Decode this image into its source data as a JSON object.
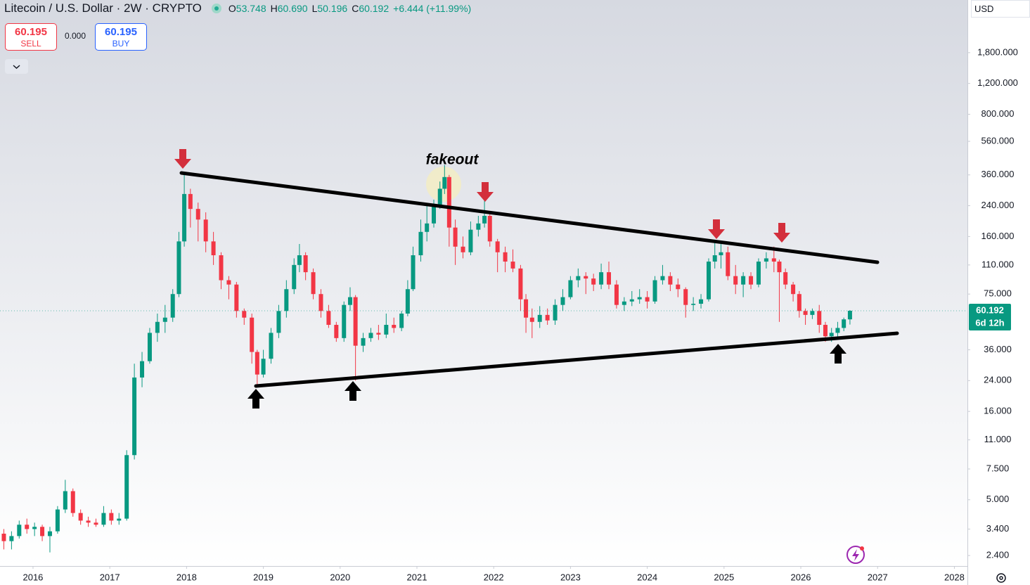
{
  "header": {
    "symbol": "Litecoin / U.S. Dollar · 2W · CRYPTO",
    "ohlc": [
      {
        "key": "O",
        "value": "53.748"
      },
      {
        "key": "H",
        "value": "60.690"
      },
      {
        "key": "L",
        "value": "50.196"
      },
      {
        "key": "C",
        "value": "60.192"
      }
    ],
    "change": "+6.444 (+11.99%)"
  },
  "trade": {
    "sell_price": "60.195",
    "sell": "SELL",
    "spread": "0.000",
    "buy_price": "60.195",
    "buy": "BUY"
  },
  "currency": "USD",
  "chart_data": {
    "type": "candlestick",
    "x": [
      2015.62,
      2015.72,
      2015.82,
      2015.92,
      2016.02,
      2016.12,
      2016.22,
      2016.32,
      2016.42,
      2016.52,
      2016.62,
      2016.72,
      2016.82,
      2016.92,
      2017.02,
      2017.12,
      2017.22,
      2017.32,
      2017.42,
      2017.52,
      2017.62,
      2017.72,
      2017.82,
      2017.9,
      2017.97,
      2018.05,
      2018.15,
      2018.25,
      2018.35,
      2018.45,
      2018.55,
      2018.65,
      2018.75,
      2018.85,
      2018.92,
      2019.0,
      2019.1,
      2019.2,
      2019.3,
      2019.4,
      2019.47,
      2019.55,
      2019.65,
      2019.75,
      2019.85,
      2019.95,
      2020.05,
      2020.13,
      2020.2,
      2020.3,
      2020.4,
      2020.5,
      2020.6,
      2020.7,
      2020.8,
      2020.88,
      2020.95,
      2021.05,
      2021.13,
      2021.22,
      2021.3,
      2021.36,
      2021.42,
      2021.5,
      2021.6,
      2021.7,
      2021.8,
      2021.88,
      2021.95,
      2022.05,
      2022.15,
      2022.25,
      2022.35,
      2022.42,
      2022.5,
      2022.6,
      2022.7,
      2022.8,
      2022.9,
      2023.0,
      2023.1,
      2023.2,
      2023.3,
      2023.4,
      2023.5,
      2023.6,
      2023.7,
      2023.8,
      2023.9,
      2024.0,
      2024.1,
      2024.2,
      2024.3,
      2024.4,
      2024.5,
      2024.6,
      2024.7,
      2024.8,
      2024.88,
      2024.96,
      2025.05,
      2025.15,
      2025.25,
      2025.35,
      2025.45,
      2025.55,
      2025.65,
      2025.72,
      2025.8,
      2025.9,
      2025.98,
      2026.06,
      2026.15,
      2026.24,
      2026.32,
      2026.4,
      2026.48,
      2026.56,
      2026.64
    ],
    "open": [
      3.2,
      2.9,
      3.1,
      3.6,
      3.4,
      3.5,
      3.1,
      3.3,
      4.4,
      5.6,
      4.2,
      3.8,
      3.7,
      3.6,
      4.2,
      3.8,
      3.9,
      9,
      25,
      31,
      45,
      52,
      55,
      75,
      150,
      280,
      230,
      200,
      150,
      125,
      90,
      85,
      60,
      55,
      35,
      26,
      32,
      45,
      60,
      80,
      110,
      125,
      100,
      75,
      60,
      50,
      42,
      65,
      72,
      38,
      42,
      45,
      44,
      50,
      48,
      58,
      80,
      125,
      170,
      190,
      240,
      300,
      350,
      180,
      140,
      130,
      175,
      190,
      210,
      150,
      130,
      115,
      105,
      70,
      55,
      52,
      57,
      53,
      65,
      72,
      90,
      95,
      92,
      85,
      100,
      85,
      65,
      68,
      70,
      72,
      68,
      90,
      95,
      85,
      80,
      65,
      66,
      70,
      115,
      125,
      130,
      95,
      85,
      95,
      85,
      115,
      120,
      115,
      100,
      85,
      75,
      60,
      57,
      60,
      50,
      43,
      45,
      48,
      53.748
    ],
    "high": [
      3.4,
      3.3,
      3.8,
      3.9,
      3.7,
      3.6,
      3.5,
      4.6,
      6.5,
      5.8,
      4.4,
      4.0,
      3.9,
      4.6,
      4.4,
      4.2,
      9.6,
      30,
      35,
      48,
      58,
      65,
      80,
      170,
      370,
      300,
      250,
      220,
      170,
      130,
      95,
      88,
      62,
      58,
      36,
      36,
      48,
      65,
      90,
      120,
      145,
      130,
      105,
      80,
      65,
      52,
      68,
      82,
      74,
      45,
      48,
      50,
      58,
      55,
      60,
      90,
      140,
      200,
      240,
      260,
      330,
      410,
      360,
      200,
      160,
      195,
      210,
      290,
      220,
      155,
      140,
      135,
      110,
      75,
      62,
      64,
      62,
      70,
      80,
      95,
      105,
      100,
      98,
      112,
      115,
      90,
      72,
      78,
      80,
      78,
      95,
      110,
      100,
      92,
      82,
      72,
      75,
      120,
      150,
      145,
      140,
      110,
      100,
      100,
      120,
      130,
      140,
      118,
      105,
      88,
      78,
      62,
      62,
      65,
      52,
      48,
      52,
      55,
      60.69
    ],
    "low": [
      2.6,
      2.6,
      3.0,
      3.2,
      3.1,
      2.9,
      2.5,
      3.2,
      4.2,
      4.0,
      3.6,
      3.5,
      3.5,
      3.5,
      3.6,
      3.6,
      3.8,
      8.5,
      22,
      30,
      40,
      45,
      52,
      72,
      140,
      180,
      150,
      130,
      110,
      80,
      70,
      55,
      50,
      30,
      22,
      25,
      30,
      42,
      55,
      75,
      100,
      90,
      70,
      55,
      48,
      40,
      40,
      60,
      24,
      35,
      40,
      41,
      42,
      45,
      46,
      56,
      78,
      115,
      150,
      180,
      230,
      280,
      140,
      110,
      120,
      125,
      160,
      180,
      140,
      100,
      100,
      100,
      60,
      45,
      42,
      48,
      50,
      50,
      60,
      70,
      82,
      75,
      78,
      80,
      80,
      62,
      60,
      64,
      66,
      62,
      66,
      85,
      78,
      72,
      55,
      60,
      62,
      68,
      105,
      105,
      90,
      75,
      72,
      80,
      82,
      105,
      100,
      52,
      80,
      68,
      55,
      50,
      54,
      45,
      40,
      40,
      42,
      46,
      50.196
    ],
    "close": [
      2.9,
      3.1,
      3.6,
      3.4,
      3.5,
      3.1,
      3.3,
      4.4,
      5.6,
      4.2,
      3.8,
      3.7,
      3.6,
      4.2,
      3.8,
      3.9,
      9,
      25,
      31,
      45,
      52,
      55,
      75,
      150,
      280,
      230,
      200,
      150,
      125,
      90,
      85,
      60,
      55,
      35,
      26,
      32,
      45,
      60,
      80,
      110,
      125,
      100,
      75,
      60,
      50,
      42,
      65,
      72,
      38,
      42,
      45,
      44,
      50,
      48,
      58,
      80,
      125,
      170,
      190,
      240,
      300,
      350,
      180,
      140,
      130,
      175,
      190,
      210,
      150,
      130,
      115,
      105,
      70,
      55,
      52,
      57,
      53,
      65,
      72,
      90,
      95,
      92,
      85,
      100,
      85,
      65,
      68,
      70,
      72,
      68,
      90,
      95,
      85,
      80,
      65,
      66,
      70,
      115,
      125,
      130,
      95,
      85,
      95,
      85,
      115,
      120,
      115,
      100,
      85,
      75,
      60,
      57,
      60,
      50,
      43,
      45,
      48,
      53.748,
      60.192
    ],
    "up_color": "#089981",
    "down_color": "#f23645",
    "log_scale": true,
    "grid": false,
    "xlim": [
      2015.57,
      2028.17
    ],
    "xticks": [
      2016,
      2017,
      2018,
      2019,
      2020,
      2021,
      2022,
      2023,
      2024,
      2025,
      2026,
      2027,
      2028
    ],
    "ylim": [
      2.09,
      3600
    ],
    "yticks": [
      {
        "value": 1800,
        "label": "1,800.000"
      },
      {
        "value": 1200,
        "label": "1,200.000"
      },
      {
        "value": 800,
        "label": "800.000"
      },
      {
        "value": 560,
        "label": "560.000"
      },
      {
        "value": 360,
        "label": "360.000"
      },
      {
        "value": 240,
        "label": "240.000"
      },
      {
        "value": 160,
        "label": "160.000"
      },
      {
        "value": 110,
        "label": "110.000"
      },
      {
        "value": 75,
        "label": "75.000"
      },
      {
        "value": 36,
        "label": "36.000"
      },
      {
        "value": 24,
        "label": "24.000"
      },
      {
        "value": 16,
        "label": "16.000"
      },
      {
        "value": 11,
        "label": "11.000"
      },
      {
        "value": 7.5,
        "label": "7.500"
      },
      {
        "value": 5,
        "label": "5.000"
      },
      {
        "value": 3.4,
        "label": "3.400"
      },
      {
        "value": 2.4,
        "label": "2.400"
      }
    ],
    "annotation": "fakeout",
    "countdown": "6d 12h"
  }
}
